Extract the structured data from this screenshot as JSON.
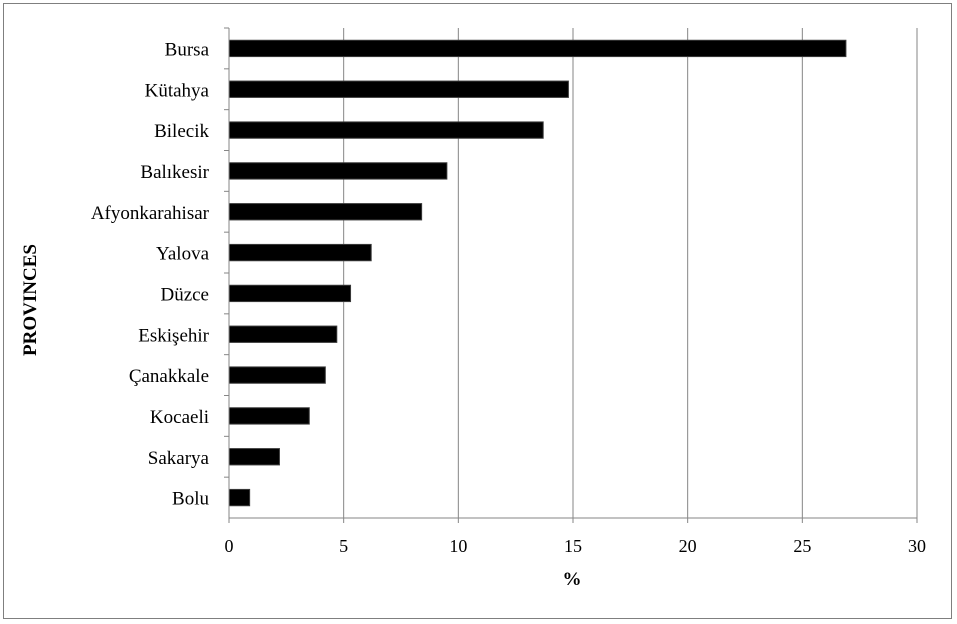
{
  "chart_data": {
    "type": "bar",
    "orientation": "horizontal",
    "categories": [
      "Bursa",
      "Kütahya",
      "Bilecik",
      "Balıkesir",
      "Afyonkarahisar",
      "Yalova",
      "Düzce",
      "Eskişehir",
      "Çanakkale",
      "Kocaeli",
      "Sakarya",
      "Bolu"
    ],
    "values": [
      26.9,
      14.8,
      13.7,
      9.5,
      8.4,
      6.2,
      5.3,
      4.7,
      4.2,
      3.5,
      2.2,
      0.9
    ],
    "xlabel": "%",
    "ylabel": "PROVINCES",
    "xlim": [
      0,
      30
    ],
    "xticks": [
      "0",
      "5",
      "10",
      "15",
      "20",
      "25",
      "30"
    ],
    "grid": "vertical",
    "bar_color": "#000000",
    "gridline_color": "#868686"
  }
}
